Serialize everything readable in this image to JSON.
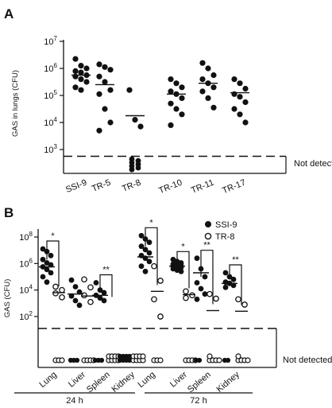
{
  "chart_data": [
    {
      "panel": "A",
      "type": "scatter",
      "ylabel": "GAS in lungs (CFU)",
      "yscale": "log",
      "ylim_log10": [
        2,
        7
      ],
      "ytick_labels": [
        {
          "base": "10",
          "exp": "3",
          "log": 3
        },
        {
          "base": "10",
          "exp": "4",
          "log": 4
        },
        {
          "base": "10",
          "exp": "5",
          "log": 5
        },
        {
          "base": "10",
          "exp": "6",
          "log": 6
        },
        {
          "base": "10",
          "exp": "7",
          "log": 7
        }
      ],
      "detection_limit_log10": 2.75,
      "not_detected_label": "Not detected",
      "categories": [
        "SSI-9",
        "TR-5",
        "TR-8",
        "TR-10",
        "TR-11",
        "TR-17"
      ],
      "series": [
        {
          "category": "SSI-9",
          "median_log10": 5.75,
          "detected_log10": [
            6.35,
            6.1,
            6.0,
            5.9,
            5.85,
            5.75,
            5.7,
            5.6,
            5.5,
            5.3,
            5.2
          ],
          "not_detected_count": 0
        },
        {
          "category": "TR-5",
          "median_log10": 5.4,
          "detected_log10": [
            6.15,
            6.05,
            5.95,
            5.7,
            5.5,
            5.2,
            5.05,
            4.5,
            4.0,
            3.7
          ],
          "not_detected_count": 0
        },
        {
          "category": "TR-8",
          "median_log10": 4.25,
          "detected_log10": [
            5.2,
            4.1,
            3.85
          ],
          "not_detected_count": 7
        },
        {
          "category": "TR-10",
          "median_log10": 5.05,
          "detected_log10": [
            5.6,
            5.45,
            5.3,
            5.15,
            5.05,
            4.9,
            4.7,
            4.5,
            4.3,
            3.9
          ],
          "not_detected_count": 0
        },
        {
          "category": "TR-11",
          "median_log10": 5.45,
          "detected_log10": [
            6.2,
            6.0,
            5.75,
            5.6,
            5.45,
            5.3,
            5.15,
            4.9,
            4.55
          ],
          "not_detected_count": 0
        },
        {
          "category": "TR-17",
          "median_log10": 5.1,
          "detected_log10": [
            5.6,
            5.45,
            5.25,
            5.05,
            4.95,
            4.75,
            4.5,
            4.3,
            4.0
          ],
          "not_detected_count": 0
        }
      ]
    },
    {
      "panel": "B",
      "type": "scatter",
      "ylabel": "GAS  (CFU)",
      "yscale": "log",
      "ytick_labels": [
        {
          "base": "10",
          "exp": "2",
          "log": 2
        },
        {
          "base": "10",
          "exp": "4",
          "log": 4
        },
        {
          "base": "10",
          "exp": "6",
          "log": 6
        },
        {
          "base": "10",
          "exp": "8",
          "log": 8
        }
      ],
      "ylim_log10": [
        0.3,
        8.6
      ],
      "detection_limit_log10": 1.1,
      "not_detected_label": "Not detected",
      "legend": [
        {
          "label": "SSI-9",
          "marker": "filled-circle"
        },
        {
          "label": "TR-8",
          "marker": "open-circle"
        }
      ],
      "categories": [
        "Lung",
        "Liver",
        "Spleen",
        "Kidney",
        "Lung",
        "Liver",
        "Spleen",
        "Kidney"
      ],
      "timepoints": [
        {
          "label": "24 h",
          "span": [
            0,
            3
          ]
        },
        {
          "label": "72 h",
          "span": [
            4,
            7
          ]
        }
      ],
      "groups": [
        {
          "organ": "Lung",
          "time": "24 h",
          "significance": "*",
          "SSI-9": {
            "median_log10": 5.75,
            "detected_log10": [
              7.1,
              6.9,
              6.6,
              6.3,
              6.05,
              5.9,
              5.75,
              5.55,
              5.3,
              5.0,
              4.6
            ],
            "not_detected_count": 0
          },
          "TR-8": {
            "median_log10": 3.8,
            "detected_log10": [
              4.25,
              4.0,
              3.75,
              3.45
            ],
            "not_detected_count": 3
          }
        },
        {
          "organ": "Liver",
          "time": "24 h",
          "significance": "",
          "SSI-9": {
            "median_log10": 3.7,
            "detected_log10": [
              4.75,
              4.25,
              3.85,
              3.55,
              3.2,
              2.85
            ],
            "not_detected_count": 3
          },
          "TR-8": {
            "median_log10": 3.55,
            "detected_log10": [
              4.8,
              4.2,
              3.6,
              3.1
            ],
            "not_detected_count": 4
          }
        },
        {
          "organ": "Spleen",
          "time": "24 h",
          "significance": "**",
          "SSI-9": {
            "median_log10": 3.6,
            "detected_log10": [
              4.55,
              4.0,
              3.8,
              3.6,
              3.4,
              3.2
            ],
            "not_detected_count": 3
          },
          "TR-8": {
            "median_log10": null,
            "detected_log10": [],
            "not_detected_count": 8
          }
        },
        {
          "organ": "Kidney",
          "time": "24 h",
          "significance": "",
          "SSI-9": {
            "median_log10": null,
            "detected_log10": [],
            "not_detected_count": 8
          },
          "TR-8": {
            "median_log10": null,
            "detected_log10": [],
            "not_detected_count": 8
          }
        },
        {
          "organ": "Lung",
          "time": "72 h",
          "significance": "*",
          "SSI-9": {
            "median_log10": 6.5,
            "detected_log10": [
              8.1,
              7.85,
              7.6,
              7.3,
              7.05,
              6.8,
              6.6,
              6.4,
              6.15,
              5.8,
              5.4
            ],
            "not_detected_count": 0
          },
          "TR-8": {
            "median_log10": 3.9,
            "detected_log10": [
              5.8,
              4.7,
              3.3,
              2.0
            ],
            "not_detected_count": 3
          }
        },
        {
          "organ": "Liver",
          "time": "72 h",
          "significance": "*",
          "SSI-9": {
            "median_log10": 5.8,
            "detected_log10": [
              6.3,
              6.15,
              6.05,
              5.95,
              5.9,
              5.85,
              5.8,
              5.75,
              5.7,
              5.6,
              5.5,
              5.4
            ],
            "not_detected_count": 0
          },
          "TR-8": {
            "median_log10": 3.65,
            "detected_log10": [
              3.9,
              3.6,
              3.4
            ],
            "not_detected_count": 4
          }
        },
        {
          "organ": "Spleen",
          "time": "72 h",
          "significance": "**",
          "SSI-9": {
            "median_log10": 5.3,
            "detected_log10": [
              6.4,
              5.6,
              5.0,
              4.55,
              4.1,
              3.7,
              3.3
            ],
            "not_detected_count": 2
          },
          "TR-8": {
            "median_log10": 2.45,
            "detected_log10": [
              3.7,
              3.35
            ],
            "not_detected_count": 5
          }
        },
        {
          "organ": "Kidney",
          "time": "72 h",
          "significance": "**",
          "SSI-9": {
            "median_log10": 4.5,
            "detected_log10": [
              5.3,
              5.0,
              4.8,
              4.6,
              4.5,
              4.35,
              4.2
            ],
            "not_detected_count": 2
          },
          "TR-8": {
            "median_log10": 2.4,
            "detected_log10": [
              3.3,
              2.9
            ],
            "not_detected_count": 5
          }
        }
      ]
    }
  ]
}
